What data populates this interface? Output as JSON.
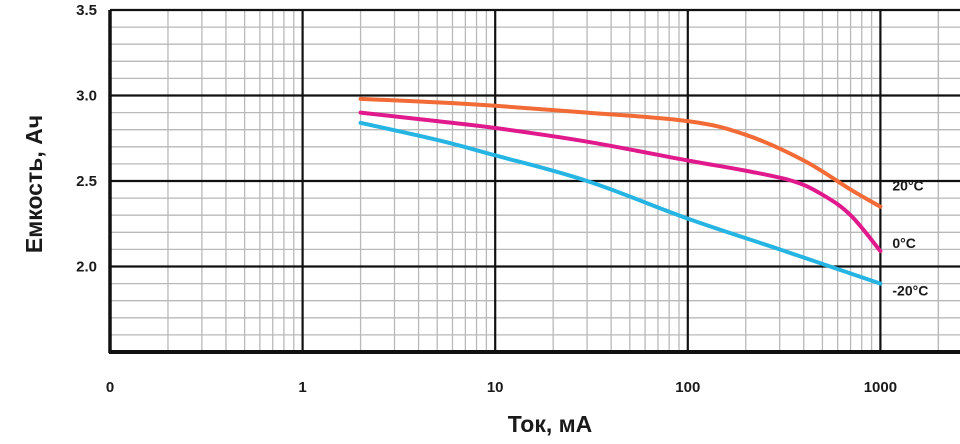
{
  "chart_data": {
    "type": "line",
    "xscale": "log",
    "xlabel": "Ток, мА",
    "ylabel": "Емкость, Ач",
    "xlim": [
      0.1,
      2000
    ],
    "ylim": [
      1.5,
      3.5
    ],
    "x_ticks": [
      {
        "value": 0.1,
        "label": "0"
      },
      {
        "value": 1,
        "label": "1"
      },
      {
        "value": 10,
        "label": "10"
      },
      {
        "value": 100,
        "label": "100"
      },
      {
        "value": 1000,
        "label": "1000"
      }
    ],
    "y_ticks": [
      {
        "value": 3.5,
        "label": "3.5"
      },
      {
        "value": 3.0,
        "label": "3.0"
      },
      {
        "value": 2.5,
        "label": "2.5"
      },
      {
        "value": 2.0,
        "label": "2.0"
      }
    ],
    "grid": true,
    "series": [
      {
        "name": "20°C",
        "color": "#f26a35",
        "points": [
          [
            2,
            2.98
          ],
          [
            5,
            2.96
          ],
          [
            10,
            2.94
          ],
          [
            30,
            2.9
          ],
          [
            100,
            2.85
          ],
          [
            200,
            2.77
          ],
          [
            400,
            2.62
          ],
          [
            700,
            2.45
          ],
          [
            1000,
            2.35
          ]
        ]
      },
      {
        "name": "0°C",
        "color": "#e0198c",
        "points": [
          [
            2,
            2.9
          ],
          [
            5,
            2.85
          ],
          [
            10,
            2.81
          ],
          [
            30,
            2.73
          ],
          [
            100,
            2.62
          ],
          [
            200,
            2.56
          ],
          [
            350,
            2.5
          ],
          [
            500,
            2.42
          ],
          [
            700,
            2.3
          ],
          [
            1000,
            2.09
          ]
        ]
      },
      {
        "name": "-20°C",
        "color": "#26b5e3",
        "points": [
          [
            2,
            2.84
          ],
          [
            5,
            2.74
          ],
          [
            10,
            2.65
          ],
          [
            30,
            2.5
          ],
          [
            100,
            2.28
          ],
          [
            300,
            2.1
          ],
          [
            1000,
            1.9
          ]
        ]
      }
    ]
  }
}
